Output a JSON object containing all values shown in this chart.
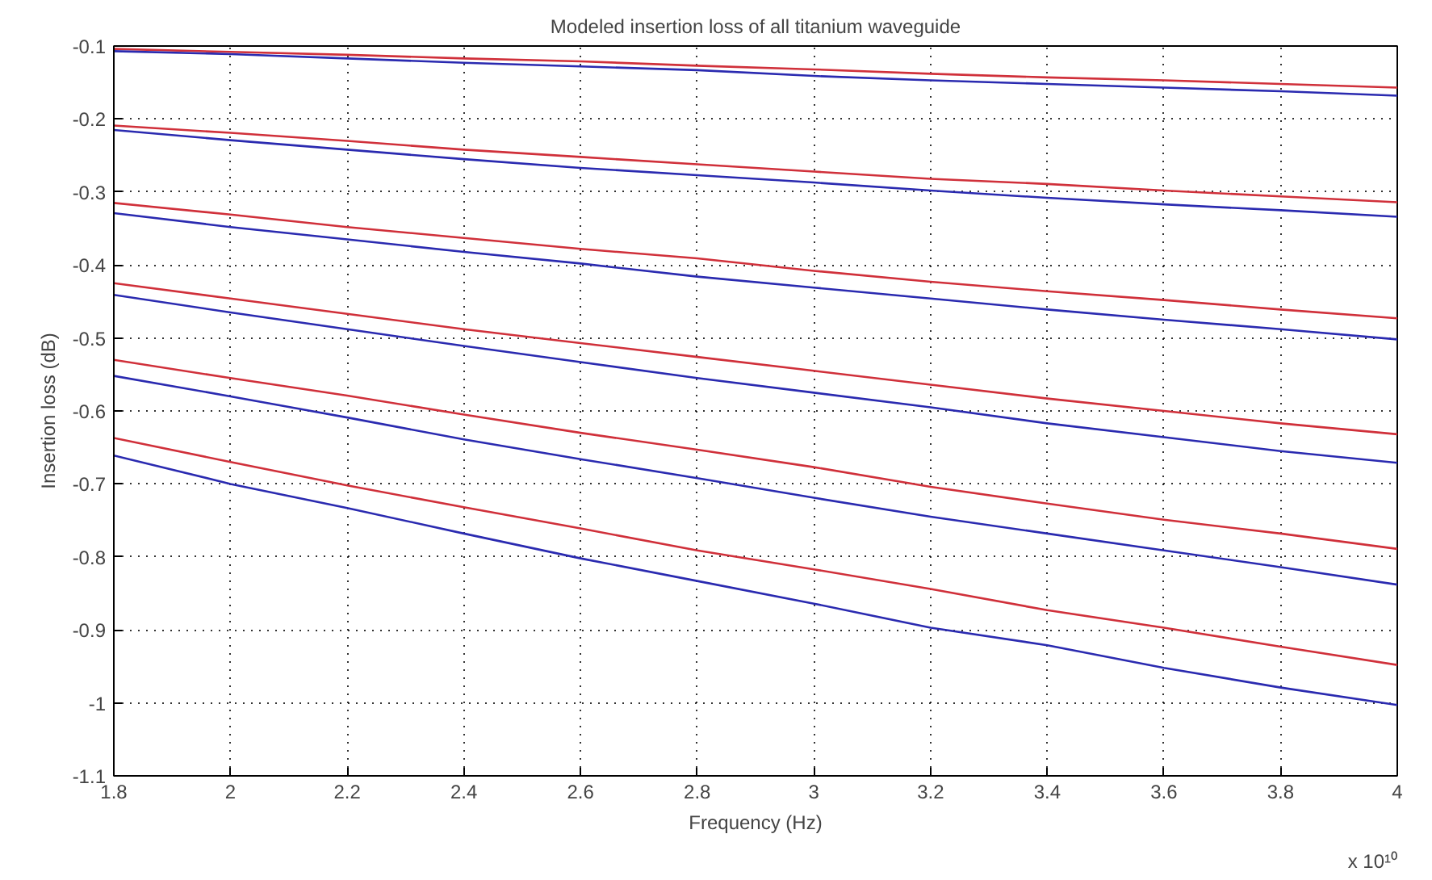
{
  "chart_data": {
    "type": "line",
    "title": "Modeled insertion loss of all titanium waveguide",
    "xlabel": "Frequency (Hz)",
    "ylabel": "Insertion loss (dB)",
    "annotations": [
      "x 10¹⁰"
    ],
    "x": [
      1.8,
      2,
      2.2,
      2.4,
      2.6,
      2.8,
      3,
      3.2,
      3.4,
      3.6,
      3.8,
      4
    ],
    "series": [
      {
        "color": "#d0303a",
        "values": [
          -0.104,
          -0.108,
          -0.112,
          -0.117,
          -0.121,
          -0.127,
          -0.132,
          -0.138,
          -0.143,
          -0.147,
          -0.152,
          -0.157
        ]
      },
      {
        "color": "#2a2ab0",
        "values": [
          -0.107,
          -0.111,
          -0.117,
          -0.123,
          -0.128,
          -0.133,
          -0.141,
          -0.147,
          -0.152,
          -0.157,
          -0.162,
          -0.168
        ]
      },
      {
        "color": "#d0303a",
        "values": [
          -0.209,
          -0.219,
          -0.23,
          -0.242,
          -0.252,
          -0.262,
          -0.272,
          -0.282,
          -0.289,
          -0.298,
          -0.306,
          -0.314
        ]
      },
      {
        "color": "#2a2ab0",
        "values": [
          -0.215,
          -0.229,
          -0.242,
          -0.255,
          -0.267,
          -0.277,
          -0.287,
          -0.298,
          -0.308,
          -0.317,
          -0.325,
          -0.334
        ]
      },
      {
        "color": "#d0303a",
        "values": [
          -0.315,
          -0.331,
          -0.348,
          -0.363,
          -0.378,
          -0.391,
          -0.408,
          -0.423,
          -0.436,
          -0.448,
          -0.461,
          -0.473
        ]
      },
      {
        "color": "#2a2ab0",
        "values": [
          -0.329,
          -0.348,
          -0.365,
          -0.382,
          -0.398,
          -0.416,
          -0.431,
          -0.446,
          -0.461,
          -0.475,
          -0.488,
          -0.502
        ]
      },
      {
        "color": "#d0303a",
        "values": [
          -0.425,
          -0.446,
          -0.467,
          -0.488,
          -0.507,
          -0.526,
          -0.545,
          -0.564,
          -0.583,
          -0.6,
          -0.617,
          -0.632
        ]
      },
      {
        "color": "#2a2ab0",
        "values": [
          -0.441,
          -0.465,
          -0.488,
          -0.511,
          -0.533,
          -0.555,
          -0.575,
          -0.595,
          -0.617,
          -0.636,
          -0.655,
          -0.671
        ]
      },
      {
        "color": "#d0303a",
        "values": [
          -0.53,
          -0.555,
          -0.579,
          -0.605,
          -0.63,
          -0.653,
          -0.677,
          -0.704,
          -0.727,
          -0.749,
          -0.768,
          -0.789
        ]
      },
      {
        "color": "#2a2ab0",
        "values": [
          -0.552,
          -0.58,
          -0.609,
          -0.639,
          -0.666,
          -0.692,
          -0.719,
          -0.745,
          -0.768,
          -0.791,
          -0.814,
          -0.838
        ]
      },
      {
        "color": "#d0303a",
        "values": [
          -0.637,
          -0.67,
          -0.702,
          -0.732,
          -0.761,
          -0.791,
          -0.817,
          -0.844,
          -0.873,
          -0.897,
          -0.923,
          -0.948
        ]
      },
      {
        "color": "#2a2ab0",
        "values": [
          -0.661,
          -0.7,
          -0.733,
          -0.768,
          -0.802,
          -0.833,
          -0.864,
          -0.897,
          -0.921,
          -0.952,
          -0.979,
          -1.003
        ]
      }
    ],
    "xlim": [
      1.8,
      4
    ],
    "ylim": [
      -1.1,
      -0.1
    ],
    "xticks": [
      1.8,
      2,
      2.2,
      2.4,
      2.6,
      2.8,
      3,
      3.2,
      3.4,
      3.6,
      3.8,
      4
    ],
    "yticks": [
      -1.1,
      -1,
      -0.9,
      -0.8,
      -0.7,
      -0.6,
      -0.5,
      -0.4,
      -0.3,
      -0.2,
      -0.1
    ],
    "grid": true,
    "marker": "none",
    "line_style": "solid"
  }
}
